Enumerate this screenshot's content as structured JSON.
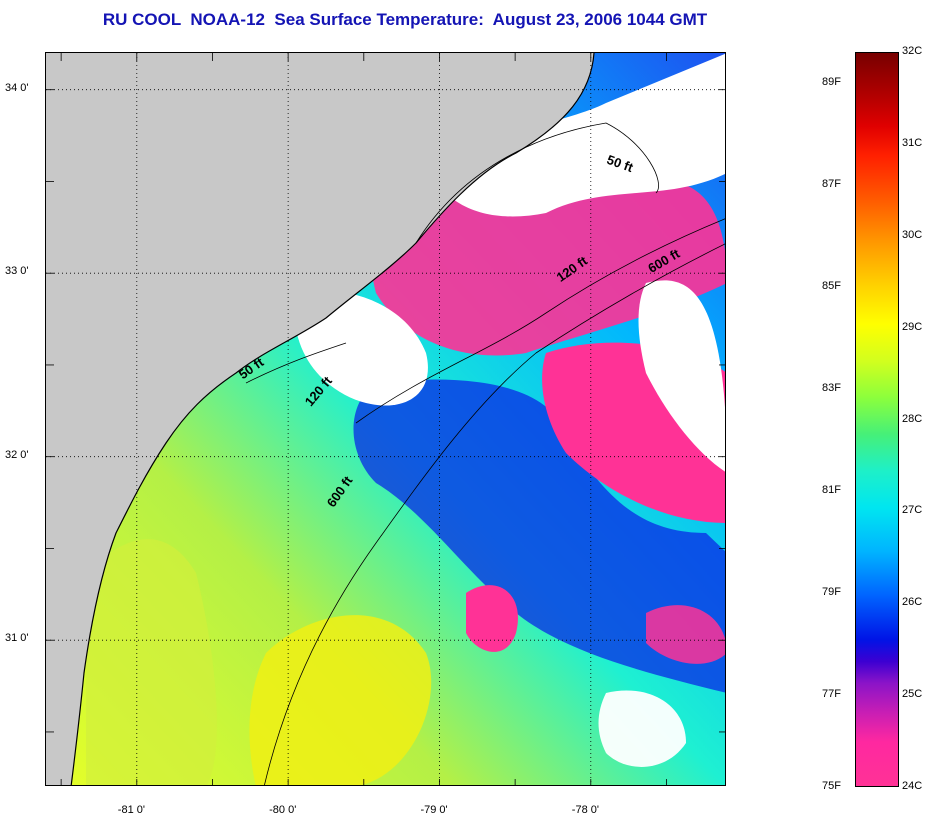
{
  "title": "RU COOL  NOAA-12  Sea Surface Temperature:  August 23, 2006 1044 GMT",
  "map": {
    "lat_ticks": [
      "34 0'",
      "33 0'",
      "32 0'",
      "31 0'"
    ],
    "lon_ticks": [
      "-81 0'",
      "-80 0'",
      "-79 0'",
      "-78 0'"
    ],
    "lat_range": [
      30.2,
      34.2
    ],
    "lon_range": [
      -81.6,
      -77.1
    ],
    "isobath_labels": [
      {
        "text": "50 ft",
        "lon": -77.9,
        "lat": 33.6,
        "angle": 20
      },
      {
        "text": "120 ft",
        "lon": -78.2,
        "lat": 32.95,
        "angle": -35
      },
      {
        "text": "600 ft",
        "lon": -77.6,
        "lat": 33.0,
        "angle": -30
      },
      {
        "text": "50 ft",
        "lon": -80.3,
        "lat": 32.42,
        "angle": -35
      },
      {
        "text": "120 ft",
        "lon": -79.85,
        "lat": 32.27,
        "angle": -50
      },
      {
        "text": "600 ft",
        "lon": -79.7,
        "lat": 31.72,
        "angle": -55
      }
    ],
    "colors": {
      "land": "#c8c8c8",
      "cloud": "#ffffff",
      "warm": "#ffff00",
      "mid": "#1ef0d2",
      "cool": "#0a28e6",
      "coldest": "#ff3296",
      "grid": "#000000"
    }
  },
  "colorbar": {
    "celsius_labels": [
      "32C",
      "31C",
      "30C",
      "29C",
      "28C",
      "27C",
      "26C",
      "25C",
      "24C"
    ],
    "fahrenheit_labels": [
      "89F",
      "87F",
      "85F",
      "83F",
      "81F",
      "79F",
      "77F",
      "75F"
    ],
    "celsius_range": [
      24,
      32
    ],
    "fahrenheit_range": [
      75,
      89
    ]
  }
}
